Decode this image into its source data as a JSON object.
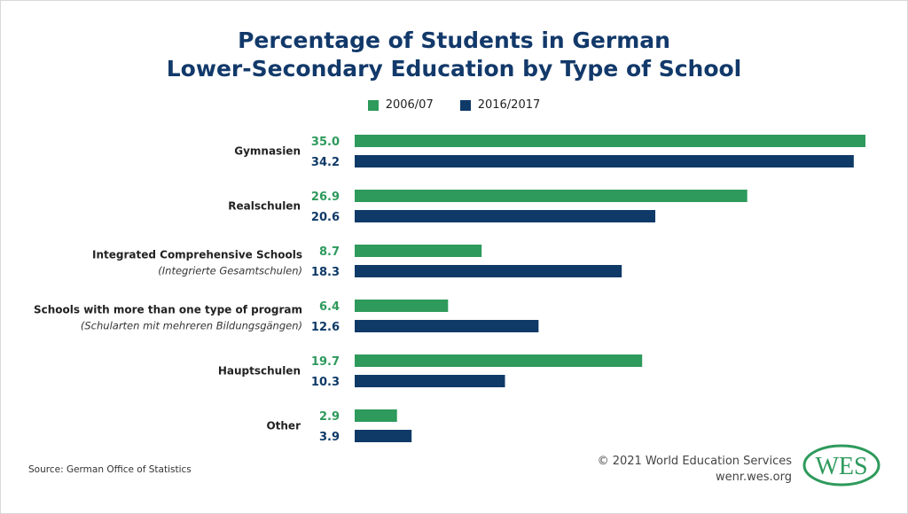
{
  "chart_data": {
    "type": "bar",
    "orientation": "horizontal",
    "title": "Percentage of Students in German Lower-Secondary Education by Type of School",
    "title_lines": [
      "Percentage of Students in German",
      "Lower-Secondary Education by Type of School"
    ],
    "categories": [
      {
        "label": "Gymnasien",
        "sublabel": ""
      },
      {
        "label": "Realschulen",
        "sublabel": ""
      },
      {
        "label": "Integrated Comprehensive Schools",
        "sublabel": "(Integrierte Gesamtschulen)"
      },
      {
        "label": "Schools with more than one type of program",
        "sublabel": "(Schularten mit mehreren Bildungsgängen)"
      },
      {
        "label": "Hauptschulen",
        "sublabel": ""
      },
      {
        "label": "Other",
        "sublabel": ""
      }
    ],
    "series": [
      {
        "name": "2006/07",
        "color": "#2e9a5c",
        "values": [
          35.0,
          26.9,
          8.7,
          6.4,
          19.7,
          2.9
        ]
      },
      {
        "name": "2016/2017",
        "color": "#0f3a68",
        "values": [
          34.2,
          20.6,
          18.3,
          12.6,
          10.3,
          3.9
        ]
      }
    ],
    "xlim": [
      0,
      35
    ],
    "grid": false,
    "legend_position": "top-center",
    "data_labels": true
  },
  "footer": {
    "source": "Source: German Office of Statistics",
    "copyright": "© 2021 World Education Services",
    "url": "wenr.wes.org",
    "logo_text": "WES"
  }
}
